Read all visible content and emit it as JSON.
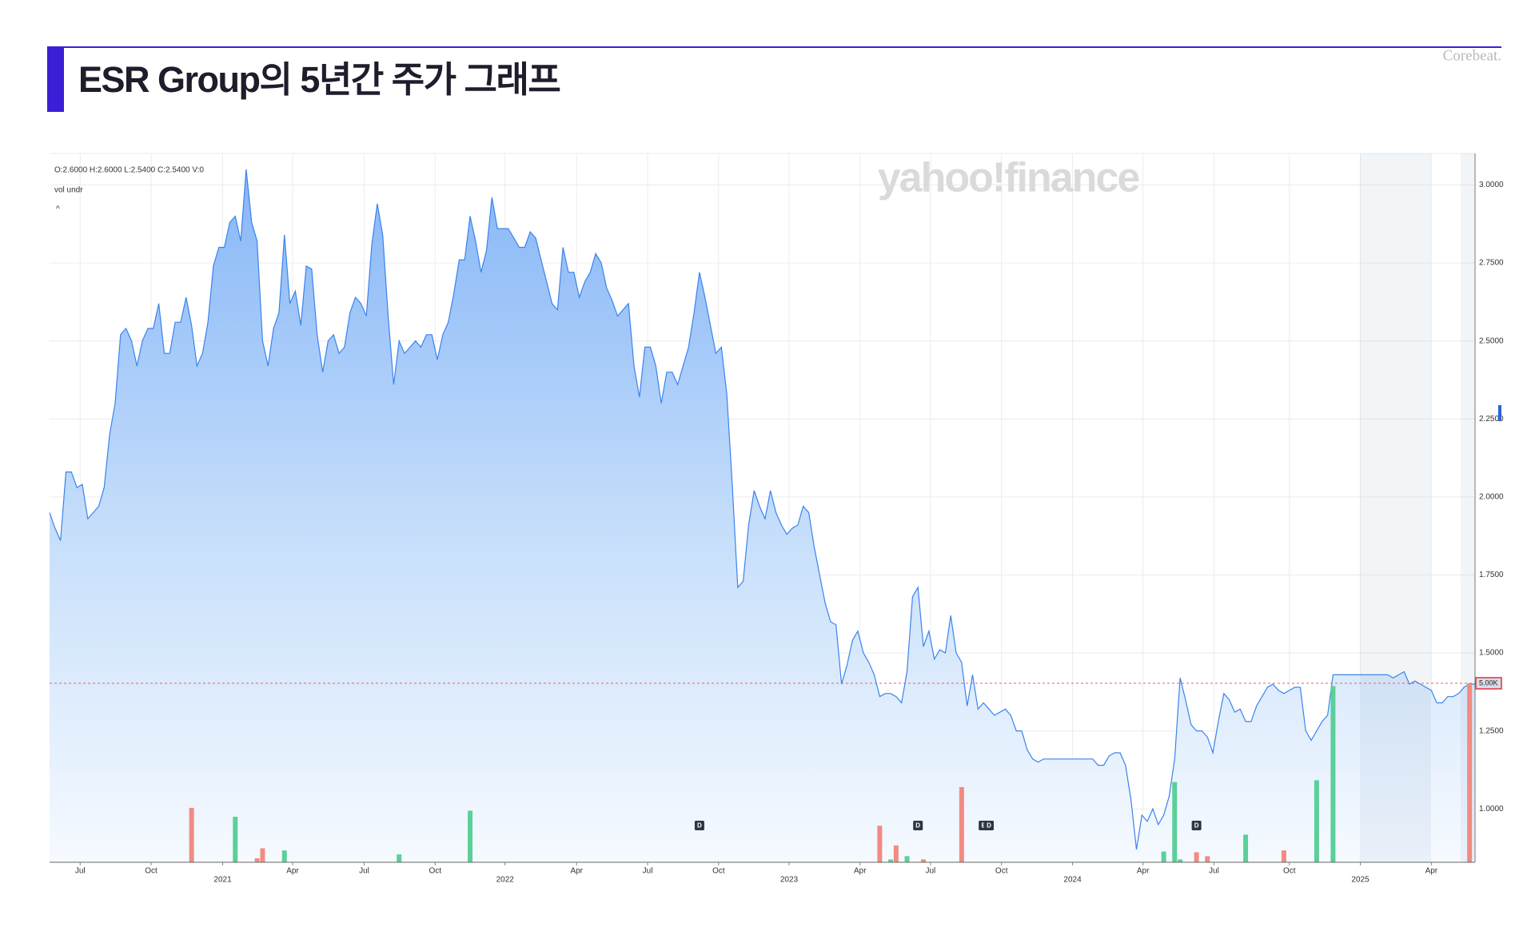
{
  "header": {
    "title": "ESR Group의 5년간 주가 그래프",
    "brand": "Corebeat."
  },
  "chart_data": {
    "type": "area",
    "watermark": "yahoo!finance",
    "ohlc": "O:2.6000  H:2.6000  L:2.5400  C:2.5400  V:0",
    "volume_note": "vol undr",
    "caret": "^",
    "color": "#3a83ee",
    "grid": true,
    "values": [
      1.95,
      1.9,
      1.86,
      2.08,
      2.08,
      2.03,
      2.04,
      1.93,
      1.95,
      1.97,
      2.03,
      2.2,
      2.3,
      2.52,
      2.54,
      2.5,
      2.42,
      2.5,
      2.54,
      2.54,
      2.62,
      2.46,
      2.46,
      2.56,
      2.56,
      2.64,
      2.55,
      2.42,
      2.46,
      2.56,
      2.74,
      2.8,
      2.8,
      2.88,
      2.9,
      2.82,
      3.05,
      2.88,
      2.82,
      2.5,
      2.42,
      2.54,
      2.59,
      2.84,
      2.62,
      2.66,
      2.55,
      2.74,
      2.73,
      2.52,
      2.4,
      2.5,
      2.52,
      2.46,
      2.48,
      2.59,
      2.64,
      2.62,
      2.58,
      2.81,
      2.94,
      2.84,
      2.58,
      2.36,
      2.5,
      2.46,
      2.48,
      2.5,
      2.48,
      2.52,
      2.52,
      2.44,
      2.52,
      2.56,
      2.65,
      2.76,
      2.76,
      2.9,
      2.82,
      2.72,
      2.79,
      2.96,
      2.86,
      2.86,
      2.86,
      2.83,
      2.8,
      2.8,
      2.85,
      2.83,
      2.76,
      2.69,
      2.62,
      2.6,
      2.8,
      2.72,
      2.72,
      2.64,
      2.69,
      2.72,
      2.78,
      2.75,
      2.67,
      2.63,
      2.58,
      2.6,
      2.62,
      2.42,
      2.32,
      2.48,
      2.48,
      2.42,
      2.3,
      2.4,
      2.4,
      2.36,
      2.42,
      2.48,
      2.59,
      2.72,
      2.64,
      2.55,
      2.46,
      2.48,
      2.33,
      2.04,
      1.71,
      1.73,
      1.91,
      2.02,
      1.97,
      1.93,
      2.02,
      1.95,
      1.91,
      1.88,
      1.9,
      1.91,
      1.97,
      1.95,
      1.84,
      1.75,
      1.66,
      1.6,
      1.59,
      1.4,
      1.46,
      1.54,
      1.57,
      1.5,
      1.47,
      1.43,
      1.36,
      1.37,
      1.37,
      1.36,
      1.34,
      1.44,
      1.68,
      1.71,
      1.52,
      1.57,
      1.48,
      1.51,
      1.5,
      1.62,
      1.5,
      1.47,
      1.33,
      1.43,
      1.32,
      1.34,
      1.32,
      1.3,
      1.31,
      1.32,
      1.3,
      1.25,
      1.25,
      1.19,
      1.16,
      1.15,
      1.16,
      1.16,
      1.16,
      1.16,
      1.16,
      1.16,
      1.16,
      1.16,
      1.16,
      1.16,
      1.14,
      1.14,
      1.17,
      1.18,
      1.18,
      1.14,
      1.03,
      0.87,
      0.98,
      0.96,
      1.0,
      0.95,
      0.98,
      1.04,
      1.16,
      1.42,
      1.35,
      1.27,
      1.25,
      1.25,
      1.23,
      1.18,
      1.28,
      1.37,
      1.35,
      1.31,
      1.32,
      1.28,
      1.28,
      1.33,
      1.36,
      1.39,
      1.4,
      1.38,
      1.37,
      1.38,
      1.39,
      1.39,
      1.25,
      1.22,
      1.25,
      1.28,
      1.3,
      1.43,
      1.43,
      1.43,
      1.43,
      1.43,
      1.43,
      1.43,
      1.43,
      1.43,
      1.43,
      1.43,
      1.42,
      1.43,
      1.44,
      1.4,
      1.41,
      1.4,
      1.39,
      1.38,
      1.34,
      1.34,
      1.36,
      1.36,
      1.37,
      1.39,
      1.4,
      1.4
    ],
    "xlim": [
      0,
      261
    ],
    "xticks": [
      {
        "value": 5.6,
        "label": "Jul"
      },
      {
        "value": 18.6,
        "label": "Oct"
      },
      {
        "value": 31.7,
        "label": "2021"
      },
      {
        "value": 44.5,
        "label": "Apr"
      },
      {
        "value": 57.6,
        "label": "Jul"
      },
      {
        "value": 70.6,
        "label": "Oct"
      },
      {
        "value": 83.4,
        "label": "2022"
      },
      {
        "value": 96.5,
        "label": "Apr"
      },
      {
        "value": 109.5,
        "label": "Jul"
      },
      {
        "value": 122.5,
        "label": "Oct"
      },
      {
        "value": 135.4,
        "label": "2023"
      },
      {
        "value": 148.4,
        "label": "Apr"
      },
      {
        "value": 161.3,
        "label": "Jul"
      },
      {
        "value": 174.3,
        "label": "Oct"
      },
      {
        "value": 187.3,
        "label": "2024"
      },
      {
        "value": 200.2,
        "label": "Apr"
      },
      {
        "value": 213.2,
        "label": "Jul"
      },
      {
        "value": 227.0,
        "label": "Oct"
      },
      {
        "value": 240.0,
        "label": "2025"
      },
      {
        "value": 253.0,
        "label": "Apr"
      }
    ],
    "ylim": [
      0.829,
      3.101
    ],
    "yticks": [
      {
        "value": 1,
        "label": "1.0000"
      },
      {
        "value": 1.25,
        "label": "1.2500"
      },
      {
        "value": 1.5,
        "label": "1.5000"
      },
      {
        "value": 1.75,
        "label": "1.7500"
      },
      {
        "value": 2,
        "label": "2.0000"
      },
      {
        "value": 2.25,
        "label": "2.2500"
      },
      {
        "value": 2.5,
        "label": "2.5000"
      },
      {
        "value": 2.75,
        "label": "2.7500"
      },
      {
        "value": 3,
        "label": "3.0000"
      }
    ],
    "volume": {
      "x": [
        26,
        34,
        38,
        39,
        43,
        64,
        77,
        152,
        154,
        155,
        157,
        160,
        167,
        204,
        206,
        207,
        210,
        212,
        219,
        226,
        232,
        235,
        260
      ],
      "values": [
        1520,
        1270,
        110,
        390,
        330,
        220,
        1440,
        1020,
        80,
        470,
        170,
        80,
        2100,
        300,
        2240,
        80,
        280,
        170,
        770,
        330,
        2290,
        4920,
        5000
      ],
      "colors": [
        "#f28b82",
        "#5ccf9a",
        "#f28b82",
        "#f28b82",
        "#5ccf9a",
        "#5ccf9a",
        "#5ccf9a",
        "#f28b82",
        "#5ccf9a",
        "#f28b82",
        "#5ccf9a",
        "#f28b82",
        "#f28b82",
        "#5ccf9a",
        "#5ccf9a",
        "#5ccf9a",
        "#f28b82",
        "#f28b82",
        "#5ccf9a",
        "#f28b82",
        "#5ccf9a",
        "#5ccf9a",
        "#f28b82"
      ],
      "ylim": [
        0,
        5000
      ],
      "ticks": [
        {
          "value": 5000,
          "label": "5.00K"
        }
      ]
    },
    "events": [
      {
        "x": 119,
        "label": "D"
      },
      {
        "x": 159,
        "label": "D"
      },
      {
        "x": 171,
        "label": "E"
      },
      {
        "x": 172,
        "label": "D"
      },
      {
        "x": 210,
        "label": "D"
      }
    ]
  }
}
